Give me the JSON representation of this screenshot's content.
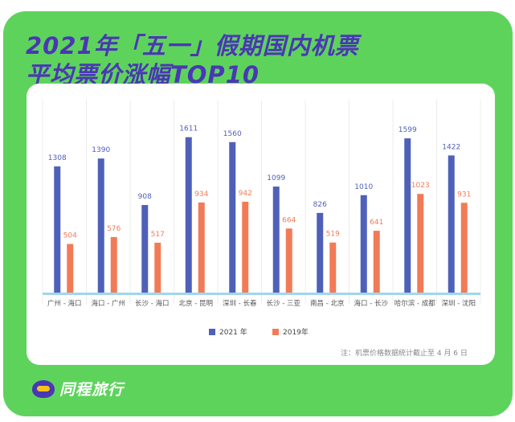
{
  "title": {
    "line1": "2021年「五一」假期国内机票",
    "line2": "平均票价涨幅TOP10"
  },
  "note": "注：机票价格数据统计截止至 4 月 6 日",
  "brand": {
    "name": "同程旅行",
    "icon": "tongcheng-logo-icon"
  },
  "colors": {
    "background": "#5ed35c",
    "title": "#4a37b5",
    "series_2021": "#4f60b8",
    "series_2019": "#f27b57",
    "baseline": "#9fd7ea"
  },
  "chart_data": {
    "type": "bar",
    "title": "2021年「五一」假期国内机票平均票价涨幅TOP10",
    "categories": [
      "广州 - 海口",
      "海口 - 广州",
      "长沙 - 海口",
      "北京 - 昆明",
      "深圳 - 长春",
      "长沙 - 三亚",
      "南昌 - 北京",
      "海口 - 长沙",
      "哈尔滨 - 成都",
      "深圳 - 沈阳"
    ],
    "series": [
      {
        "name": "2021 年",
        "values": [
          1308,
          1390,
          908,
          1611,
          1560,
          1099,
          826,
          1010,
          1599,
          1422
        ]
      },
      {
        "name": "2019年",
        "values": [
          504,
          576,
          517,
          934,
          942,
          664,
          519,
          641,
          1023,
          931
        ]
      }
    ],
    "ylim": [
      0,
      1800
    ],
    "grid": false,
    "legend": "bottom"
  }
}
